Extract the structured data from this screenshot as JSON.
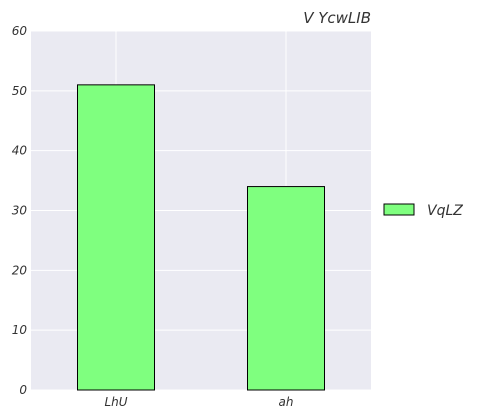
{
  "chart_data": {
    "type": "bar",
    "title": "V YcwLIB",
    "xlabel": "",
    "ylabel": "",
    "categories": [
      "LhU",
      "ah"
    ],
    "series": [
      {
        "name": "VqLZ",
        "values": [
          51,
          34
        ],
        "color": "#7fff7f"
      }
    ],
    "ylim": [
      0,
      60
    ],
    "yticks": [
      0,
      10,
      20,
      30,
      40,
      50,
      60
    ],
    "grid": true,
    "legend_position": "right",
    "plot_background": "#eaeaf2",
    "grid_color": "#ffffff"
  }
}
